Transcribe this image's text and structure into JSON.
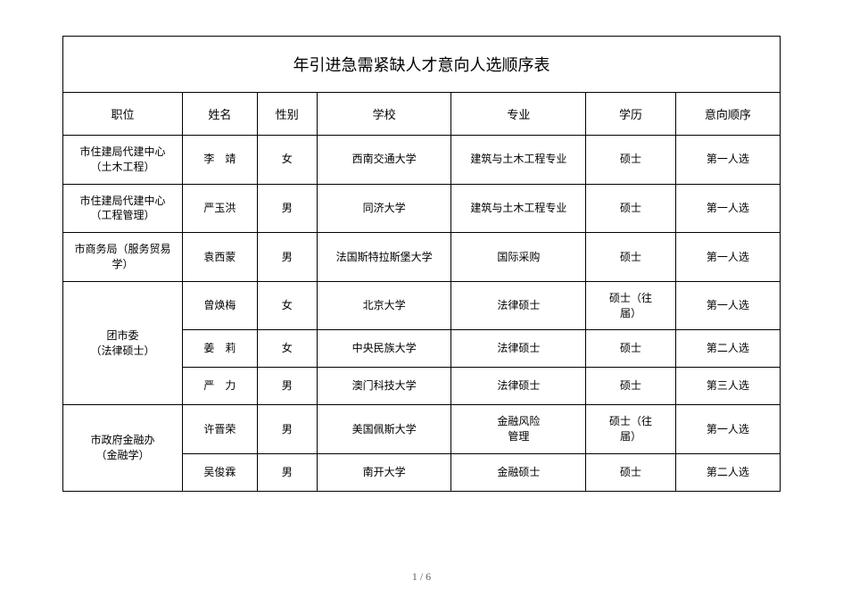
{
  "table": {
    "title": "年引进急需紧缺人才意向人选顺序表",
    "columns": [
      "职位",
      "姓名",
      "性别",
      "学校",
      "专业",
      "学历",
      "意向顺序"
    ],
    "groups": [
      {
        "position": "市住建局代建中心\n（土木工程）",
        "rows": [
          {
            "name": "李　靖",
            "gender": "女",
            "school": "西南交通大学",
            "major": "建筑与土木工程专业",
            "degree": "硕士",
            "order": "第一人选"
          }
        ]
      },
      {
        "position": "市住建局代建中心\n（工程管理）",
        "rows": [
          {
            "name": "严玉洪",
            "gender": "男",
            "school": "同济大学",
            "major": "建筑与土木工程专业",
            "degree": "硕士",
            "order": "第一人选"
          }
        ]
      },
      {
        "position": "市商务局（服务贸易\n学）",
        "rows": [
          {
            "name": "袁西蒙",
            "gender": "男",
            "school": "法国斯特拉斯堡大学",
            "major": "国际采购",
            "degree": "硕士",
            "order": "第一人选"
          }
        ]
      },
      {
        "position": "团市委\n（法律硕士）",
        "rows": [
          {
            "name": "曾焕梅",
            "gender": "女",
            "school": "北京大学",
            "major": "法律硕士",
            "degree": "硕士（往\n届）",
            "order": "第一人选"
          },
          {
            "name": "姜　莉",
            "gender": "女",
            "school": "中央民族大学",
            "major": "法律硕士",
            "degree": "硕士",
            "order": "第二人选"
          },
          {
            "name": "严　力",
            "gender": "男",
            "school": "澳门科技大学",
            "major": "法律硕士",
            "degree": "硕士",
            "order": "第三人选"
          }
        ]
      },
      {
        "position": "市政府金融办\n（金融学）",
        "rows": [
          {
            "name": "许晋荣",
            "gender": "男",
            "school": "美国佩斯大学",
            "major": "金融风险\n管理",
            "degree": "硕士（往\n届）",
            "order": "第一人选"
          },
          {
            "name": "吴俊霖",
            "gender": "男",
            "school": "南开大学",
            "major": "金融硕士",
            "degree": "硕士",
            "order": "第二人选"
          }
        ]
      }
    ]
  },
  "page": {
    "current": "1",
    "total": "6",
    "separator": " / "
  },
  "style": {
    "background_color": "#ffffff",
    "border_color": "#000000",
    "text_color": "#000000",
    "page_number_color": "#606060",
    "title_fontsize": 18,
    "header_fontsize": 13,
    "cell_fontsize": 12,
    "column_widths_pct": [
      16,
      10,
      8,
      18,
      18,
      12,
      14
    ]
  }
}
